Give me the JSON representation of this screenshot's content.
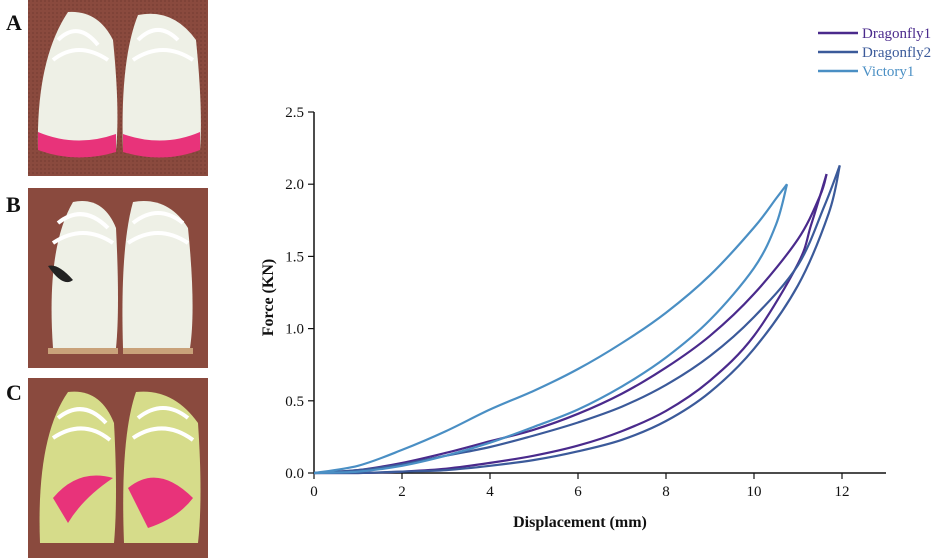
{
  "panels": [
    {
      "label": "A",
      "description_icon": "running-shoe-photo-pink-sole"
    },
    {
      "label": "B",
      "description_icon": "running-shoe-photo-white"
    },
    {
      "label": "C",
      "description_icon": "running-shoe-photo-lime-pink-swoosh"
    }
  ],
  "colors": {
    "Dragonfly1": "#4a2a8c",
    "Dragonfly2": "#3b5a9a",
    "Victory1": "#4a8fc4",
    "photo_floor": "#8a4a3e",
    "shoe_white": "#eef0e6",
    "pink": "#e8337a",
    "lime": "#d6dc8a"
  },
  "chart_data": {
    "type": "line",
    "xlabel": "Displacement (mm)",
    "ylabel": "Force (KN)",
    "xlim": [
      0,
      13
    ],
    "ylim": [
      0,
      2.5
    ],
    "xticks": [
      0,
      2,
      4,
      6,
      8,
      10,
      12
    ],
    "yticks": [
      0.0,
      0.5,
      1.0,
      1.5,
      2.0,
      2.5
    ],
    "xtick_labels": [
      "0",
      "2",
      "4",
      "6",
      "8",
      "10",
      "12"
    ],
    "ytick_labels": [
      "0.0",
      "0.5",
      "1.0",
      "1.5",
      "2.0",
      "2.5"
    ],
    "grid": false,
    "legend_position": "top-right",
    "series": [
      {
        "name": "Dragonfly1",
        "loading": [
          [
            0,
            0
          ],
          [
            1,
            0.02
          ],
          [
            2,
            0.07
          ],
          [
            3,
            0.14
          ],
          [
            4,
            0.22
          ],
          [
            5,
            0.3
          ],
          [
            6,
            0.41
          ],
          [
            7,
            0.55
          ],
          [
            8,
            0.73
          ],
          [
            9,
            0.95
          ],
          [
            10,
            1.24
          ],
          [
            11,
            1.62
          ],
          [
            11.5,
            1.92
          ],
          [
            11.65,
            2.07
          ]
        ],
        "unloading": [
          [
            11.65,
            2.07
          ],
          [
            11.3,
            1.72
          ],
          [
            11,
            1.45
          ],
          [
            10,
            0.95
          ],
          [
            9,
            0.64
          ],
          [
            8,
            0.43
          ],
          [
            7,
            0.29
          ],
          [
            6,
            0.19
          ],
          [
            5,
            0.12
          ],
          [
            4,
            0.07
          ],
          [
            3,
            0.03
          ],
          [
            2,
            0.01
          ],
          [
            1,
            0.0
          ],
          [
            0,
            0
          ]
        ]
      },
      {
        "name": "Dragonfly2",
        "loading": [
          [
            0,
            0
          ],
          [
            1,
            0.02
          ],
          [
            2,
            0.06
          ],
          [
            3,
            0.12
          ],
          [
            4,
            0.18
          ],
          [
            5,
            0.26
          ],
          [
            6,
            0.35
          ],
          [
            7,
            0.46
          ],
          [
            8,
            0.61
          ],
          [
            9,
            0.81
          ],
          [
            10,
            1.08
          ],
          [
            11,
            1.44
          ],
          [
            11.6,
            1.85
          ],
          [
            11.95,
            2.13
          ]
        ],
        "unloading": [
          [
            11.95,
            2.13
          ],
          [
            11.7,
            1.8
          ],
          [
            11,
            1.3
          ],
          [
            10,
            0.86
          ],
          [
            9,
            0.56
          ],
          [
            8,
            0.36
          ],
          [
            7,
            0.23
          ],
          [
            6,
            0.15
          ],
          [
            5,
            0.09
          ],
          [
            4,
            0.05
          ],
          [
            3,
            0.02
          ],
          [
            2,
            0.01
          ],
          [
            1,
            0.0
          ],
          [
            0,
            0
          ]
        ]
      },
      {
        "name": "Victory1",
        "loading": [
          [
            0,
            0
          ],
          [
            1,
            0.05
          ],
          [
            2,
            0.16
          ],
          [
            3,
            0.29
          ],
          [
            4,
            0.44
          ],
          [
            5,
            0.57
          ],
          [
            6,
            0.72
          ],
          [
            7,
            0.9
          ],
          [
            8,
            1.11
          ],
          [
            9,
            1.37
          ],
          [
            10,
            1.7
          ],
          [
            10.5,
            1.9
          ],
          [
            10.75,
            2.0
          ]
        ],
        "unloading": [
          [
            10.75,
            2.0
          ],
          [
            10.5,
            1.72
          ],
          [
            10,
            1.42
          ],
          [
            9,
            1.06
          ],
          [
            8,
            0.8
          ],
          [
            7,
            0.6
          ],
          [
            6,
            0.44
          ],
          [
            5,
            0.32
          ],
          [
            4,
            0.21
          ],
          [
            3,
            0.12
          ],
          [
            2,
            0.05
          ],
          [
            1,
            0.01
          ],
          [
            0,
            0
          ]
        ]
      }
    ]
  }
}
